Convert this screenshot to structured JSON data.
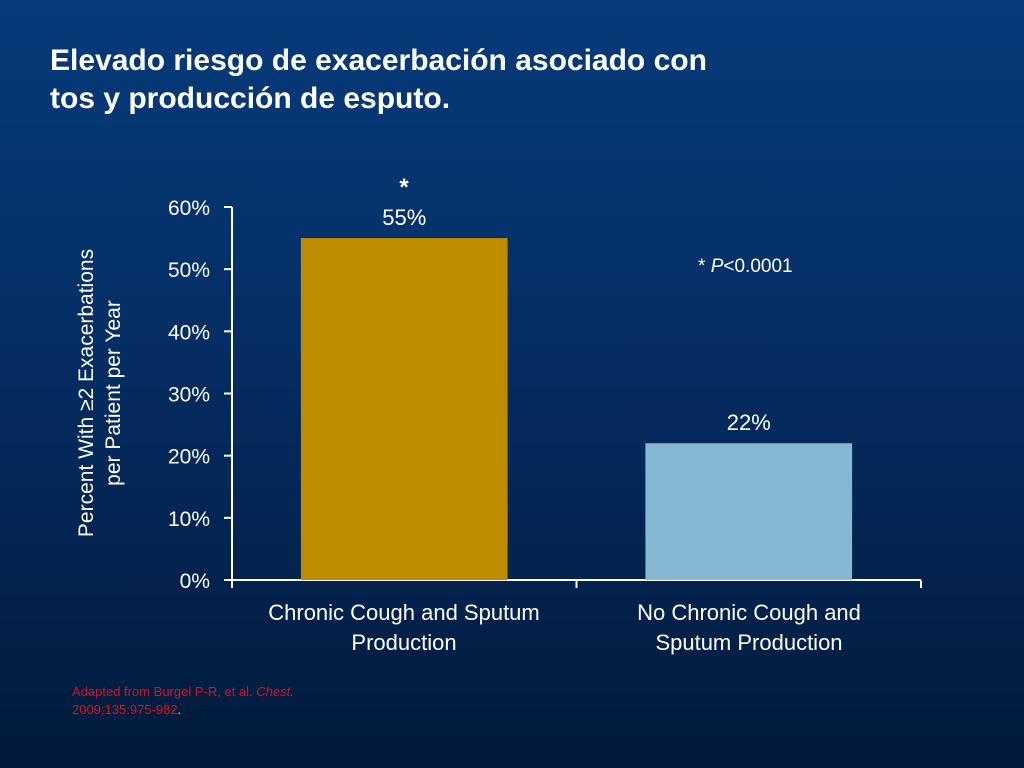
{
  "slide": {
    "title_line1": "Elevado riesgo de exacerbación asociado con",
    "title_line2": "tos y producción de esputo.",
    "significance_marker": "*",
    "significance_note_prefix": "* ",
    "significance_note_p": "P",
    "significance_note_value": "<0.0001",
    "source_line1_prefix": "Adapted from Burgel P-R, et al. ",
    "source_line1_journal": "Chest.",
    "source_line2": "2009;135:975-982",
    "source_line2_end": ".",
    "colors": {
      "background_top": "#063a7a",
      "background_bottom": "#021a3a",
      "bar1": "#bf8b00",
      "bar2": "#87b8d3",
      "source_text": "#e0101a"
    }
  },
  "chart_data": {
    "type": "bar",
    "title": "",
    "ylabel_line1": "Percent With ≥2 Exacerbations",
    "ylabel_line2": "per Patient per Year",
    "xlabel": "",
    "categories": [
      {
        "line1": "Chronic Cough and Sputum",
        "line2": "Production"
      },
      {
        "line1": "No Chronic Cough and",
        "line2": "Sputum Production"
      }
    ],
    "values": [
      55,
      22
    ],
    "data_labels": [
      "55%",
      "22%"
    ],
    "ylim": [
      0,
      60
    ],
    "yticks": [
      0,
      10,
      20,
      30,
      40,
      50,
      60
    ],
    "ytick_labels": [
      "0%",
      "10%",
      "20%",
      "30%",
      "40%",
      "50%",
      "60%"
    ],
    "grid": false,
    "legend": "none"
  }
}
